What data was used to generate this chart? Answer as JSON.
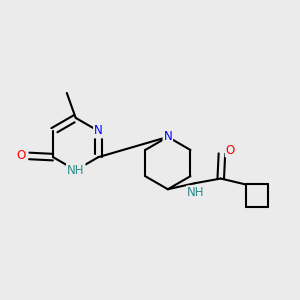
{
  "bg_color": "#EBEBEB",
  "bond_color": "#000000",
  "bond_width": 1.5,
  "atom_colors": {
    "N": "#0000FF",
    "O": "#FF0000",
    "NH_amide": "#2E8B8B",
    "NH_pyr": "#2E8B8B"
  },
  "font_size": 8.5,
  "xlim": [
    -2.5,
    2.5
  ],
  "ylim": [
    -1.8,
    1.8
  ]
}
